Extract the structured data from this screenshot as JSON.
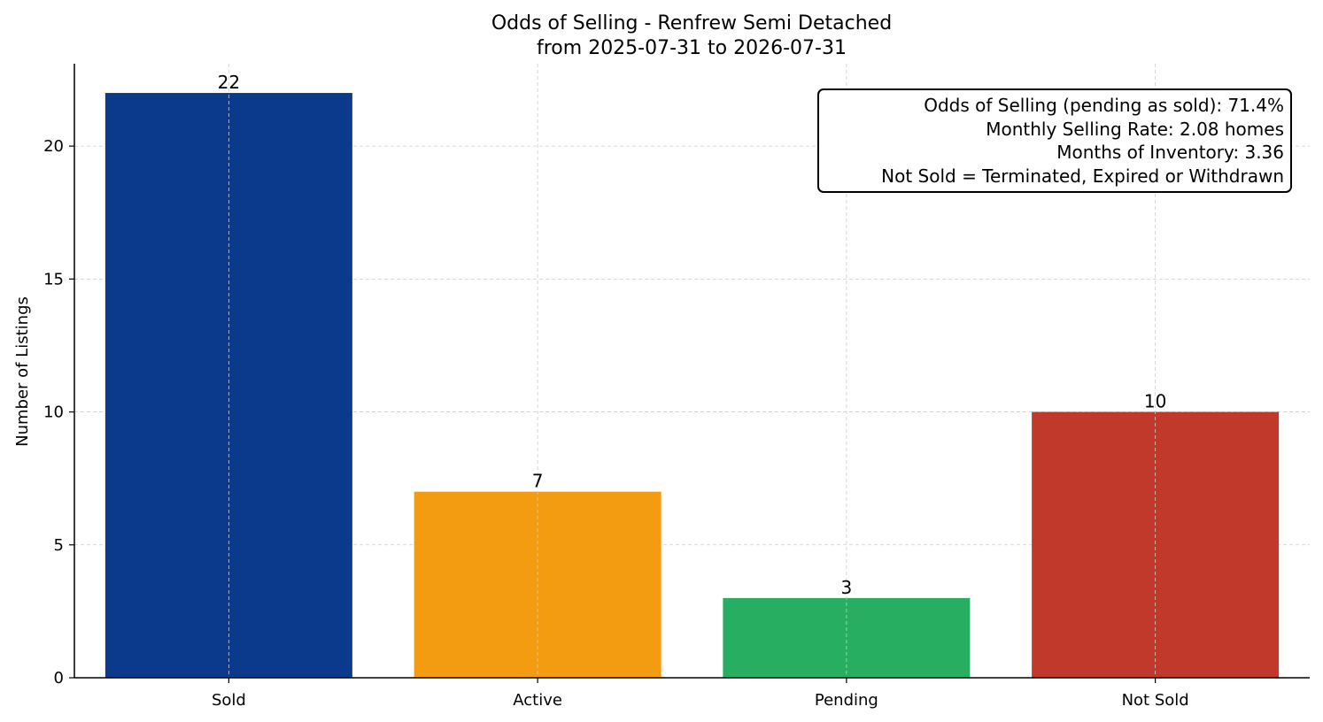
{
  "chart_data": {
    "type": "bar",
    "title": "Odds of Selling - Renfrew Semi Detached",
    "subtitle": "from 2025-07-31 to 2026-07-31",
    "xlabel": "",
    "ylabel": "Number of Listings",
    "categories": [
      "Sold",
      "Active",
      "Pending",
      "Not Sold"
    ],
    "values": [
      22,
      7,
      3,
      10
    ],
    "colors": [
      "#0b3a8c",
      "#f39c12",
      "#27ae60",
      "#c0392b"
    ],
    "ylim": [
      0,
      23.1
    ],
    "yticks": [
      0,
      5,
      10,
      15,
      20
    ],
    "grid": true,
    "annotations": [
      "Odds of Selling (pending as sold): 71.4%",
      "Monthly Selling Rate: 2.08 homes",
      "Months of Inventory: 3.36",
      "Not Sold = Terminated, Expired or Withdrawn"
    ],
    "annotation_placement": "top-right"
  }
}
